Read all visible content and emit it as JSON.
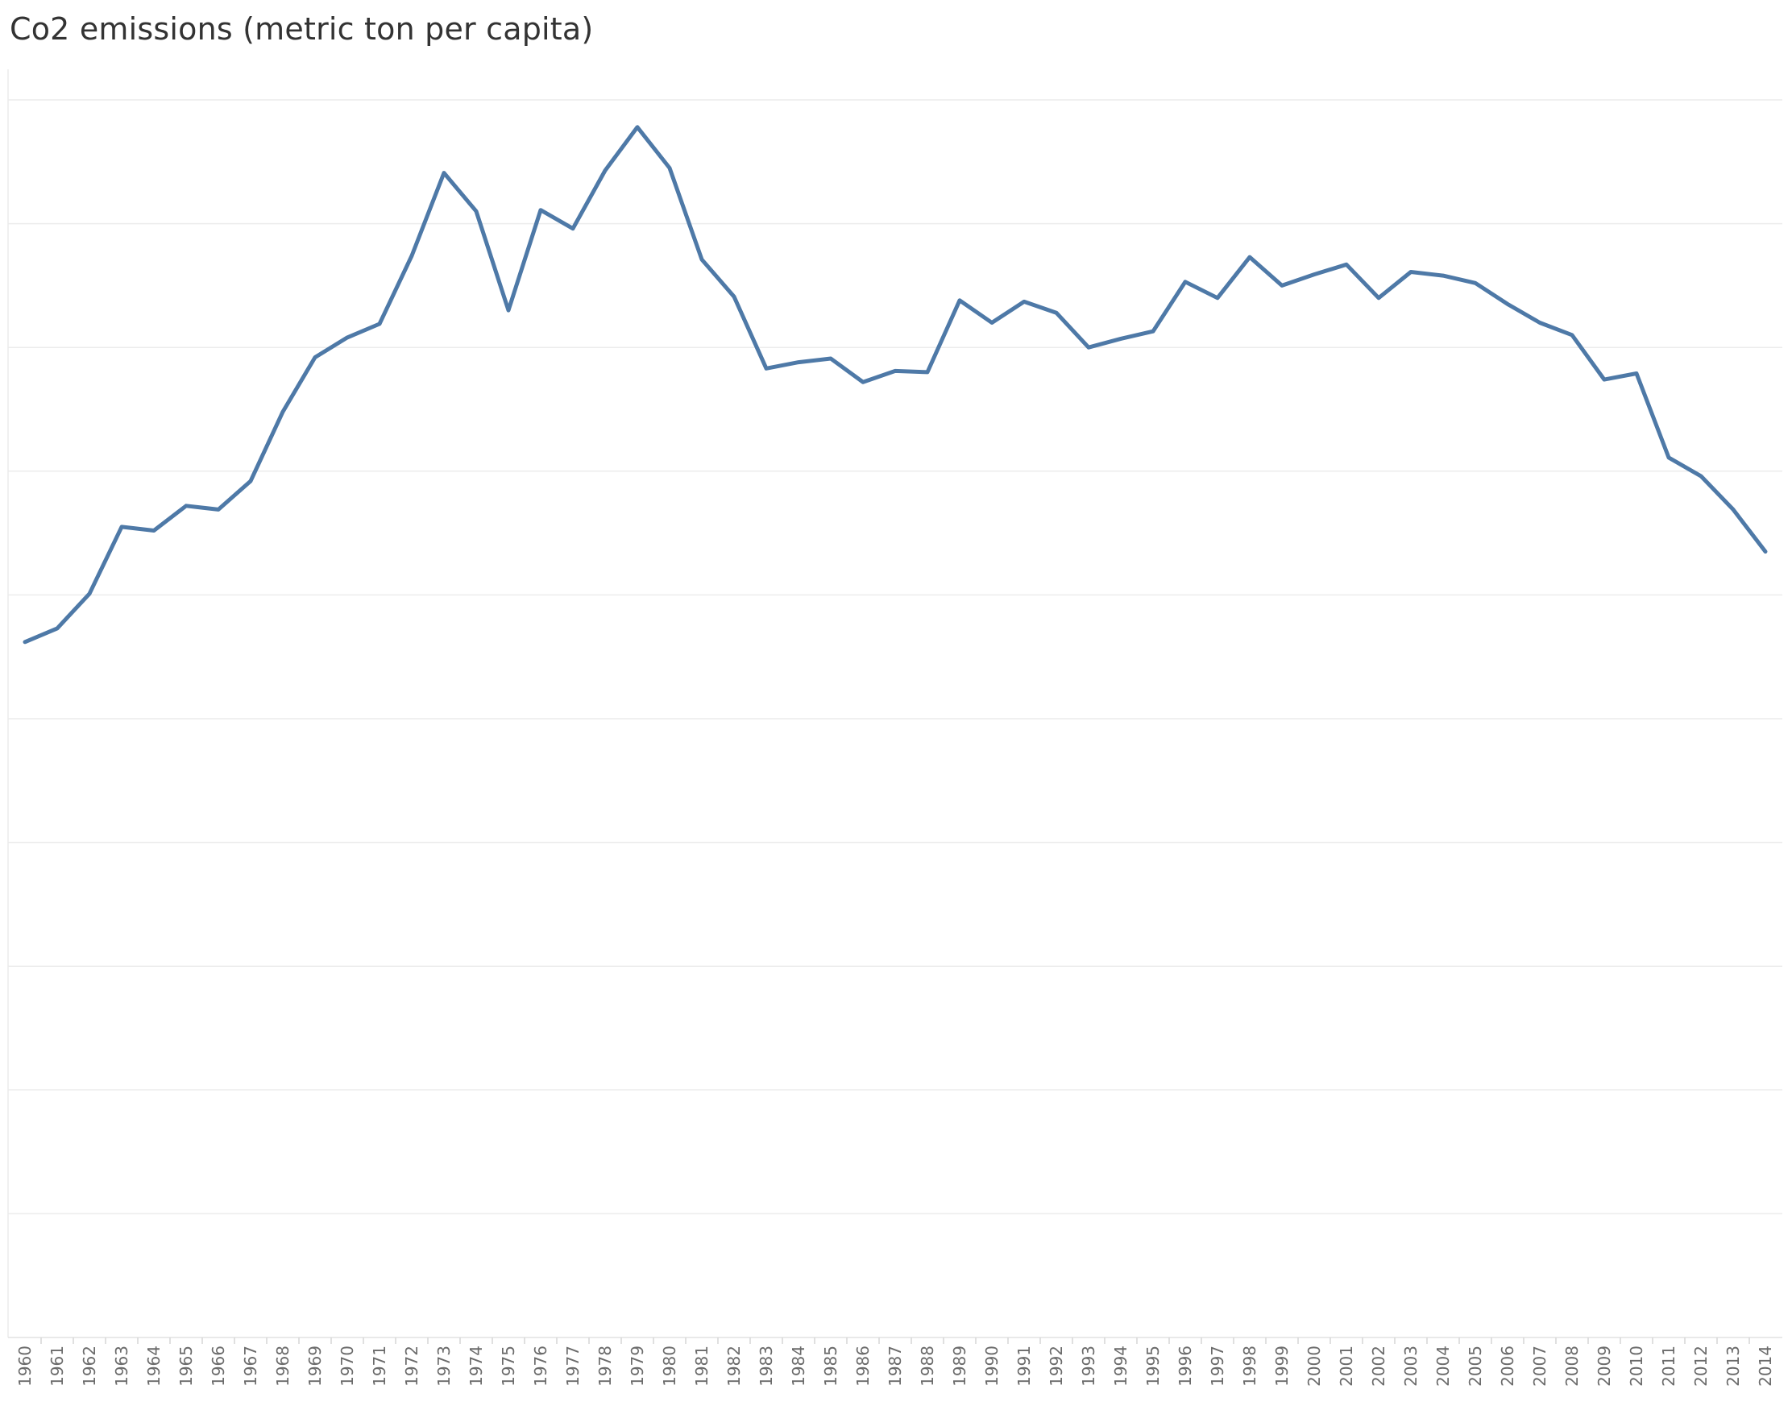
{
  "chart_data": {
    "type": "line",
    "title": "Co2 emissions (metric ton per capita)",
    "xlabel": "",
    "ylabel": "",
    "grid": true,
    "ylim": [
      0,
      10
    ],
    "yticks": [
      0,
      1,
      2,
      3,
      4,
      5,
      6,
      7,
      8,
      9,
      10
    ],
    "x": [
      "1960",
      "1961",
      "1962",
      "1963",
      "1964",
      "1965",
      "1966",
      "1967",
      "1968",
      "1969",
      "1970",
      "1971",
      "1972",
      "1973",
      "1974",
      "1975",
      "1976",
      "1977",
      "1978",
      "1979",
      "1980",
      "1981",
      "1982",
      "1983",
      "1984",
      "1985",
      "1986",
      "1987",
      "1988",
      "1989",
      "1990",
      "1991",
      "1992",
      "1993",
      "1994",
      "1995",
      "1996",
      "1997",
      "1998",
      "1999",
      "2000",
      "2001",
      "2002",
      "2003",
      "2004",
      "2005",
      "2006",
      "2007",
      "2008",
      "2009",
      "2010",
      "2011",
      "2012",
      "2013",
      "2014"
    ],
    "series": [
      {
        "color": "#4e79a7",
        "values": [
          5.62,
          5.73,
          6.01,
          6.55,
          6.52,
          6.72,
          6.69,
          6.92,
          7.48,
          7.92,
          8.08,
          8.19,
          8.74,
          9.41,
          9.1,
          8.3,
          9.11,
          8.96,
          9.43,
          9.78,
          9.45,
          8.71,
          8.41,
          7.83,
          7.88,
          7.91,
          7.72,
          7.81,
          7.8,
          8.38,
          8.2,
          8.37,
          8.28,
          8.0,
          8.07,
          8.13,
          8.53,
          8.4,
          8.73,
          8.5,
          8.59,
          8.67,
          8.4,
          8.61,
          8.58,
          8.52,
          8.35,
          8.2,
          8.1,
          7.74,
          7.79,
          7.11,
          6.96,
          6.69,
          6.35
        ]
      }
    ],
    "colors": {
      "line": "#4e79a7",
      "grid": "#ececec",
      "axis": "#e2e2e2",
      "tick_label": "#6b6b6b",
      "title": "#333333"
    }
  }
}
